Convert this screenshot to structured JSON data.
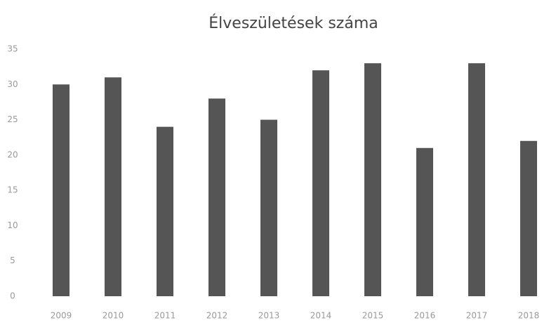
{
  "chart_data": {
    "type": "bar",
    "title": "Élveszületések száma",
    "categories": [
      "2009",
      "2010",
      "2011",
      "2012",
      "2013",
      "2014",
      "2015",
      "2016",
      "2017",
      "2018"
    ],
    "values": [
      30,
      31,
      24,
      28,
      25,
      32,
      33,
      21,
      33,
      22
    ],
    "color": "#555555",
    "ylim": [
      0,
      35
    ],
    "yticks": [
      0,
      5,
      10,
      15,
      20,
      25,
      30,
      35
    ],
    "grid": false
  }
}
